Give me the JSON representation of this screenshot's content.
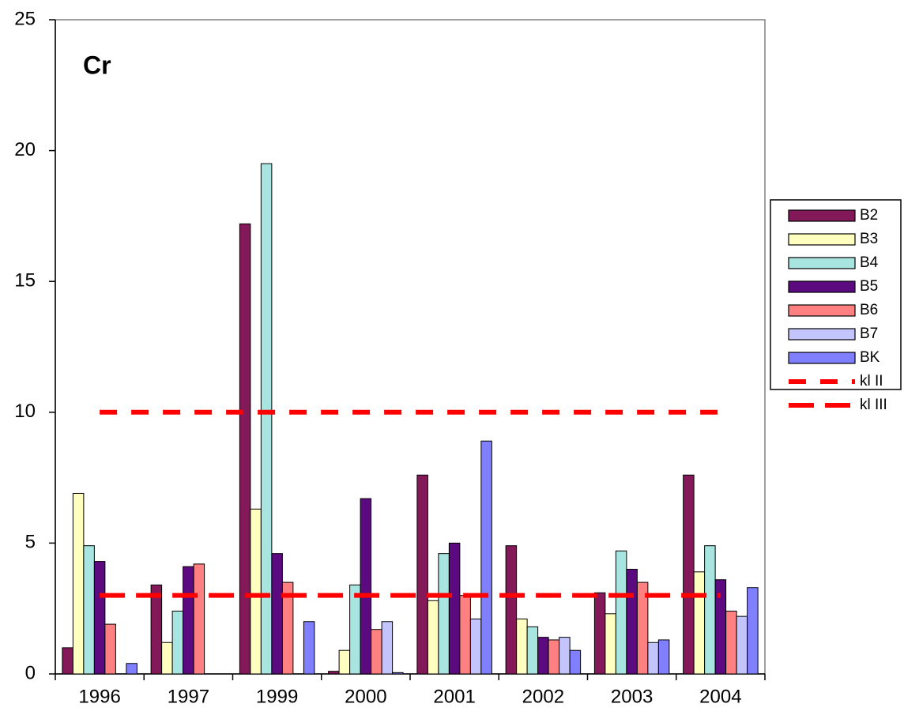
{
  "chart_data": {
    "type": "bar",
    "title": "Cr",
    "categories": [
      "1996",
      "1997",
      "1999",
      "2000",
      "2001",
      "2002",
      "2003",
      "2004"
    ],
    "ylim": [
      0,
      25
    ],
    "yticks": [
      0,
      5,
      10,
      15,
      20,
      25
    ],
    "series": [
      {
        "name": "B2",
        "color": "#84195a",
        "values": [
          1.0,
          3.4,
          17.2,
          0.1,
          7.6,
          4.9,
          3.1,
          7.6
        ]
      },
      {
        "name": "B3",
        "color": "#ffffc0",
        "values": [
          6.9,
          1.2,
          6.3,
          0.9,
          2.8,
          2.1,
          2.3,
          3.9
        ]
      },
      {
        "name": "B4",
        "color": "#a8e4e0",
        "values": [
          4.9,
          2.4,
          19.5,
          3.4,
          4.6,
          1.8,
          4.7,
          4.9
        ]
      },
      {
        "name": "B5",
        "color": "#5c0a80",
        "values": [
          4.3,
          4.1,
          4.6,
          6.7,
          5.0,
          1.4,
          4.0,
          3.6
        ]
      },
      {
        "name": "B6",
        "color": "#ff8080",
        "values": [
          1.9,
          4.2,
          3.5,
          1.7,
          3.0,
          1.3,
          3.5,
          2.4
        ]
      },
      {
        "name": "B7",
        "color": "#c4c4fc",
        "values": [
          null,
          null,
          null,
          2.0,
          2.1,
          1.4,
          1.2,
          2.2
        ]
      },
      {
        "name": "BK",
        "color": "#8080ff",
        "values": [
          0.4,
          null,
          2.0,
          0.05,
          8.9,
          0.9,
          1.3,
          3.3
        ]
      },
      {
        "name": "kl II",
        "type": "line",
        "color": "#ff0000",
        "values": [
          10,
          10,
          10,
          10,
          10,
          10,
          10,
          10
        ]
      },
      {
        "name": "kl III",
        "type": "line",
        "color": "#ff0000",
        "values": [
          3,
          3,
          3,
          3,
          3,
          3,
          3,
          3
        ]
      }
    ]
  }
}
